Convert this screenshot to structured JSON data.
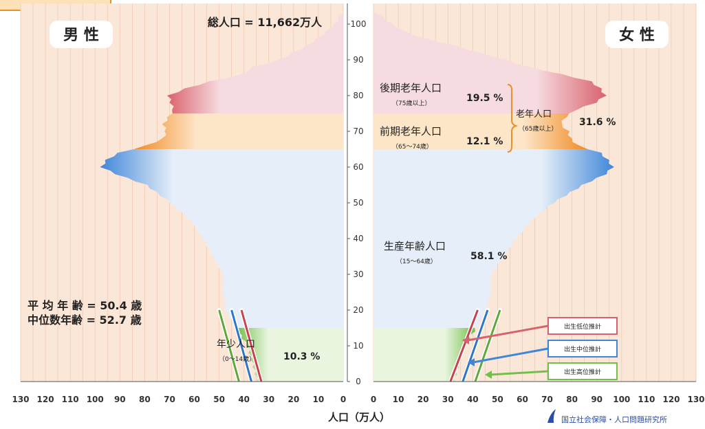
{
  "chart_data": {
    "type": "population-pyramid",
    "title": "総人口 = 11,662万人",
    "left_label": "男 性",
    "right_label": "女 性",
    "xlabel": "人口（万人）",
    "x_ticks_left": [
      130,
      120,
      110,
      100,
      90,
      80,
      70,
      60,
      50,
      40,
      30,
      20,
      10,
      0
    ],
    "x_ticks_right": [
      0,
      10,
      20,
      30,
      40,
      50,
      60,
      70,
      80,
      90,
      100,
      110,
      120,
      130
    ],
    "y_ticks": [
      0,
      10,
      20,
      30,
      40,
      50,
      60,
      70,
      80,
      90,
      100
    ],
    "xlim": [
      0,
      130
    ],
    "ylim": [
      0,
      105
    ],
    "age_groups": [
      {
        "name": "後期老年人口",
        "range": "（75歳以上）",
        "percent": "19.5 %",
        "age_from": 75,
        "age_to": 105,
        "color": "#d9616b",
        "color_light": "#f6dbe0"
      },
      {
        "name": "前期老年人口",
        "range": "（65〜74歳）",
        "percent": "12.1 %",
        "age_from": 65,
        "age_to": 75,
        "color": "#f08a24",
        "color_light": "#fde6c8"
      },
      {
        "name": "生産年齢人口",
        "range": "（15〜64歳）",
        "percent": "58.1 %",
        "age_from": 15,
        "age_to": 65,
        "color": "#3f86d8",
        "color_light": "#e6eef9"
      },
      {
        "name": "年少人口",
        "range": "（0〜14歳）",
        "percent": "10.3 %",
        "age_from": 0,
        "age_to": 15,
        "color": "#72c04a",
        "color_light": "#eaf5e0"
      }
    ],
    "elderly_total": {
      "name": "老年人口",
      "range": "（65歳以上）",
      "percent": "31.6 %"
    },
    "stats": [
      "平 均 年 齢 = 50.4 歳",
      "中位数年齢 = 52.7 歳"
    ],
    "legend": [
      {
        "label": "出生低位推計",
        "color": "#d9616b"
      },
      {
        "label": "出生中位推計",
        "color": "#3f86d8"
      },
      {
        "label": "出生高位推計",
        "color": "#72c04a"
      }
    ],
    "source": "国立社会保障・人口問題研究所",
    "male": [
      [
        0,
        35
      ],
      [
        5,
        37
      ],
      [
        10,
        39
      ],
      [
        15,
        44
      ],
      [
        20,
        48
      ],
      [
        25,
        49
      ],
      [
        30,
        49
      ],
      [
        35,
        53
      ],
      [
        40,
        57
      ],
      [
        45,
        62
      ],
      [
        50,
        70
      ],
      [
        55,
        80
      ],
      [
        58,
        92
      ],
      [
        60,
        98
      ],
      [
        62,
        96
      ],
      [
        64,
        91
      ],
      [
        66,
        80
      ],
      [
        68,
        73
      ],
      [
        70,
        72
      ],
      [
        72,
        73
      ],
      [
        74,
        71
      ],
      [
        76,
        69
      ],
      [
        78,
        70
      ],
      [
        80,
        71
      ],
      [
        82,
        64
      ],
      [
        84,
        54
      ],
      [
        86,
        41
      ],
      [
        88,
        37
      ],
      [
        90,
        26
      ],
      [
        92,
        21
      ],
      [
        94,
        15
      ],
      [
        96,
        11
      ],
      [
        98,
        7
      ],
      [
        100,
        4
      ],
      [
        102,
        2
      ],
      [
        104,
        0
      ]
    ],
    "female": [
      [
        0,
        33
      ],
      [
        5,
        35
      ],
      [
        10,
        37
      ],
      [
        15,
        42
      ],
      [
        20,
        46
      ],
      [
        25,
        48
      ],
      [
        30,
        48
      ],
      [
        35,
        53
      ],
      [
        40,
        58
      ],
      [
        45,
        64
      ],
      [
        50,
        73
      ],
      [
        55,
        85
      ],
      [
        58,
        94
      ],
      [
        60,
        97
      ],
      [
        62,
        95
      ],
      [
        64,
        92
      ],
      [
        66,
        83
      ],
      [
        68,
        80
      ],
      [
        70,
        79
      ],
      [
        72,
        76
      ],
      [
        74,
        78
      ],
      [
        76,
        82
      ],
      [
        78,
        90
      ],
      [
        80,
        94
      ],
      [
        82,
        92
      ],
      [
        84,
        88
      ],
      [
        86,
        76
      ],
      [
        88,
        63
      ],
      [
        90,
        54
      ],
      [
        92,
        43
      ],
      [
        94,
        33
      ],
      [
        96,
        21
      ],
      [
        98,
        13
      ],
      [
        100,
        8
      ],
      [
        102,
        4
      ],
      [
        104,
        0
      ]
    ],
    "projection_lines": {
      "male": {
        "low": [
          [
            0,
            33
          ],
          [
            20,
            41
          ]
        ],
        "mid": [
          [
            0,
            37
          ],
          [
            20,
            45
          ]
        ],
        "high": [
          [
            0,
            42
          ],
          [
            20,
            50
          ]
        ]
      },
      "female": {
        "low": [
          [
            0,
            31
          ],
          [
            20,
            42
          ]
        ],
        "mid": [
          [
            0,
            36
          ],
          [
            20,
            46
          ]
        ],
        "high": [
          [
            0,
            41
          ],
          [
            20,
            51
          ]
        ]
      }
    }
  }
}
